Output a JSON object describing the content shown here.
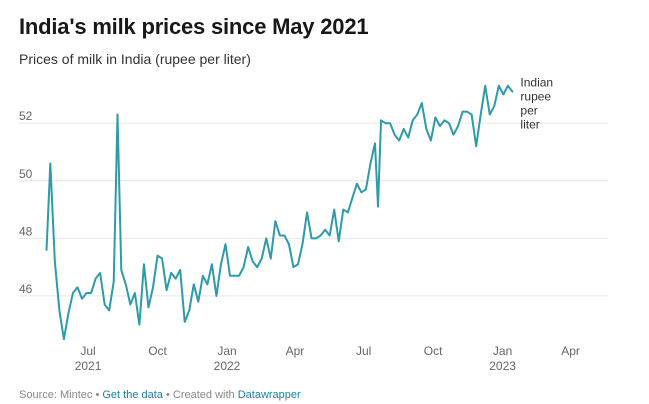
{
  "header": {
    "title": "India's milk prices since May 2021",
    "subtitle": "Prices of milk in India (rupee per liter)"
  },
  "footer": {
    "source": "Source: Mintec",
    "get_data": "Get the data",
    "created_with": "Created with",
    "tool": "Datawrapper",
    "sep": "•"
  },
  "colors": {
    "line": "#2e9ba8",
    "grid": "#e6e6e6",
    "text": "#333333"
  },
  "chart_data": {
    "type": "line",
    "title": "India's milk prices since May 2021",
    "subtitle": "Prices of milk in India (rupee per liter)",
    "xlabel": "",
    "ylabel": "",
    "unit": "rupee per liter",
    "grid": true,
    "xlim": [
      "2021-05-01",
      "2023-05-10"
    ],
    "ylim": [
      44.4,
      53.5
    ],
    "y_ticks": [
      46,
      48,
      50,
      52
    ],
    "x_ticks": [
      {
        "date": "2021-07-01",
        "label": "Jul",
        "sublabel": "2021"
      },
      {
        "date": "2021-10-01",
        "label": "Oct",
        "sublabel": ""
      },
      {
        "date": "2022-01-01",
        "label": "Jan",
        "sublabel": "2022"
      },
      {
        "date": "2022-04-01",
        "label": "Apr",
        "sublabel": ""
      },
      {
        "date": "2022-07-01",
        "label": "Jul",
        "sublabel": ""
      },
      {
        "date": "2022-10-01",
        "label": "Oct",
        "sublabel": ""
      },
      {
        "date": "2023-01-01",
        "label": "Jan",
        "sublabel": "2023"
      },
      {
        "date": "2023-04-01",
        "label": "Apr",
        "sublabel": ""
      }
    ],
    "series": [
      {
        "name": "Indian rupee per liter",
        "label_lines": [
          "Indian",
          "rupee",
          "per",
          "liter"
        ],
        "points": [
          [
            "2021-05-07",
            47.6
          ],
          [
            "2021-05-12",
            50.6
          ],
          [
            "2021-05-18",
            47.2
          ],
          [
            "2021-05-24",
            45.5
          ],
          [
            "2021-05-30",
            44.5
          ],
          [
            "2021-06-05",
            45.4
          ],
          [
            "2021-06-11",
            46.1
          ],
          [
            "2021-06-17",
            46.3
          ],
          [
            "2021-06-23",
            45.9
          ],
          [
            "2021-06-29",
            46.1
          ],
          [
            "2021-07-05",
            46.1
          ],
          [
            "2021-07-11",
            46.6
          ],
          [
            "2021-07-17",
            46.8
          ],
          [
            "2021-07-23",
            45.7
          ],
          [
            "2021-07-29",
            45.5
          ],
          [
            "2021-08-04",
            46.5
          ],
          [
            "2021-08-09",
            52.3
          ],
          [
            "2021-08-14",
            46.9
          ],
          [
            "2021-08-20",
            46.4
          ],
          [
            "2021-08-26",
            45.7
          ],
          [
            "2021-09-01",
            46.1
          ],
          [
            "2021-09-07",
            45.0
          ],
          [
            "2021-09-13",
            47.1
          ],
          [
            "2021-09-19",
            45.6
          ],
          [
            "2021-09-25",
            46.3
          ],
          [
            "2021-10-01",
            47.4
          ],
          [
            "2021-10-07",
            47.3
          ],
          [
            "2021-10-13",
            46.2
          ],
          [
            "2021-10-19",
            46.8
          ],
          [
            "2021-10-25",
            46.6
          ],
          [
            "2021-10-31",
            46.9
          ],
          [
            "2021-11-06",
            45.1
          ],
          [
            "2021-11-12",
            45.5
          ],
          [
            "2021-11-18",
            46.4
          ],
          [
            "2021-11-24",
            45.8
          ],
          [
            "2021-11-30",
            46.7
          ],
          [
            "2021-12-06",
            46.4
          ],
          [
            "2021-12-12",
            47.1
          ],
          [
            "2021-12-18",
            46.0
          ],
          [
            "2021-12-24",
            47.1
          ],
          [
            "2021-12-30",
            47.8
          ],
          [
            "2022-01-05",
            46.7
          ],
          [
            "2022-01-11",
            46.7
          ],
          [
            "2022-01-17",
            46.7
          ],
          [
            "2022-01-23",
            47.0
          ],
          [
            "2022-01-29",
            47.7
          ],
          [
            "2022-02-04",
            47.2
          ],
          [
            "2022-02-10",
            47.0
          ],
          [
            "2022-02-16",
            47.3
          ],
          [
            "2022-02-22",
            48.0
          ],
          [
            "2022-02-28",
            47.3
          ],
          [
            "2022-03-06",
            48.6
          ],
          [
            "2022-03-12",
            48.1
          ],
          [
            "2022-03-18",
            48.1
          ],
          [
            "2022-03-24",
            47.8
          ],
          [
            "2022-03-30",
            47.0
          ],
          [
            "2022-04-05",
            47.1
          ],
          [
            "2022-04-11",
            47.8
          ],
          [
            "2022-04-17",
            48.9
          ],
          [
            "2022-04-23",
            48.0
          ],
          [
            "2022-04-29",
            48.0
          ],
          [
            "2022-05-05",
            48.1
          ],
          [
            "2022-05-11",
            48.3
          ],
          [
            "2022-05-17",
            48.1
          ],
          [
            "2022-05-23",
            49.0
          ],
          [
            "2022-05-29",
            47.9
          ],
          [
            "2022-06-04",
            49.0
          ],
          [
            "2022-06-10",
            48.9
          ],
          [
            "2022-06-16",
            49.4
          ],
          [
            "2022-06-22",
            49.9
          ],
          [
            "2022-06-28",
            49.6
          ],
          [
            "2022-07-04",
            49.7
          ],
          [
            "2022-07-10",
            50.6
          ],
          [
            "2022-07-16",
            51.3
          ],
          [
            "2022-07-20",
            49.1
          ],
          [
            "2022-07-24",
            52.1
          ],
          [
            "2022-07-30",
            52.0
          ],
          [
            "2022-08-05",
            52.0
          ],
          [
            "2022-08-11",
            51.6
          ],
          [
            "2022-08-17",
            51.4
          ],
          [
            "2022-08-23",
            51.8
          ],
          [
            "2022-08-29",
            51.5
          ],
          [
            "2022-09-04",
            52.1
          ],
          [
            "2022-09-10",
            52.3
          ],
          [
            "2022-09-16",
            52.7
          ],
          [
            "2022-09-22",
            51.8
          ],
          [
            "2022-09-28",
            51.4
          ],
          [
            "2022-10-04",
            52.2
          ],
          [
            "2022-10-10",
            51.9
          ],
          [
            "2022-10-16",
            52.1
          ],
          [
            "2022-10-22",
            52.0
          ],
          [
            "2022-10-28",
            51.6
          ],
          [
            "2022-11-03",
            51.9
          ],
          [
            "2022-11-09",
            52.4
          ],
          [
            "2022-11-15",
            52.4
          ],
          [
            "2022-11-21",
            52.3
          ],
          [
            "2022-11-27",
            51.2
          ],
          [
            "2022-12-03",
            52.3
          ],
          [
            "2022-12-09",
            53.3
          ],
          [
            "2022-12-15",
            52.3
          ],
          [
            "2022-12-21",
            52.6
          ],
          [
            "2022-12-27",
            53.3
          ],
          [
            "2023-01-02",
            53.0
          ],
          [
            "2023-01-08",
            53.3
          ],
          [
            "2023-01-14",
            53.1
          ]
        ]
      }
    ]
  }
}
